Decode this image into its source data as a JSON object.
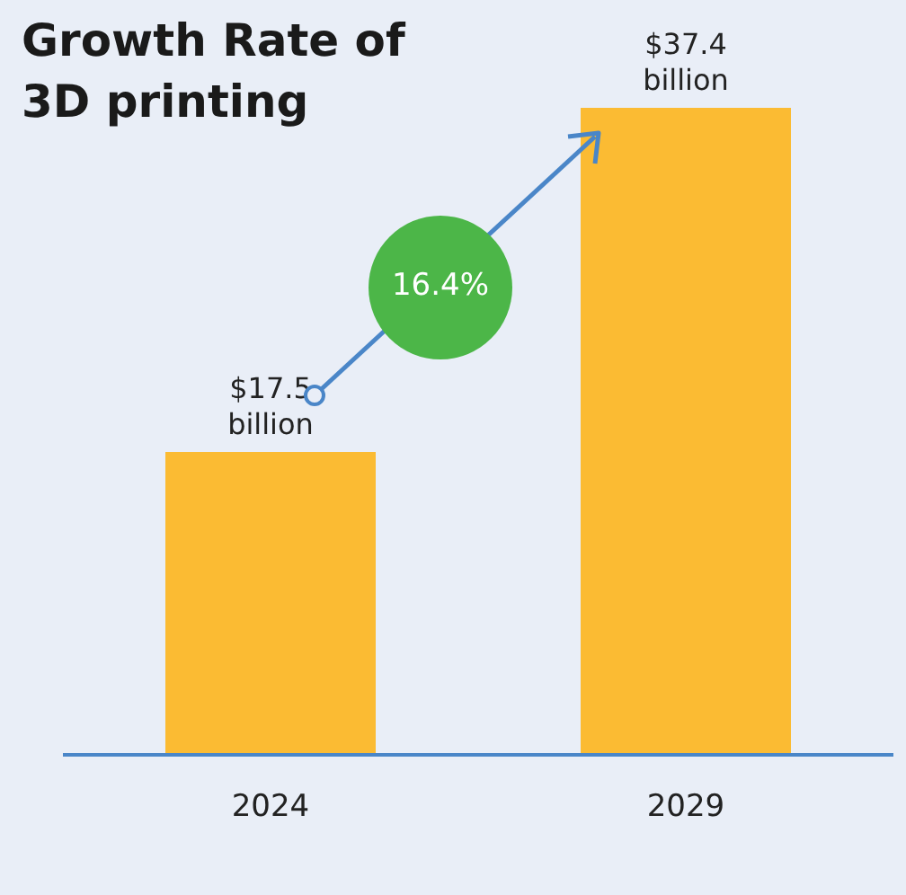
{
  "chart_data": {
    "type": "bar",
    "title": "Growth Rate of 3D printing",
    "categories": [
      "2024",
      "2029"
    ],
    "values": [
      17.5,
      37.4
    ],
    "color": "#fbbb33",
    "value_labels": [
      "$17.5 billion",
      "$37.4 billion"
    ],
    "annotations": [
      "16.4%"
    ]
  }
}
